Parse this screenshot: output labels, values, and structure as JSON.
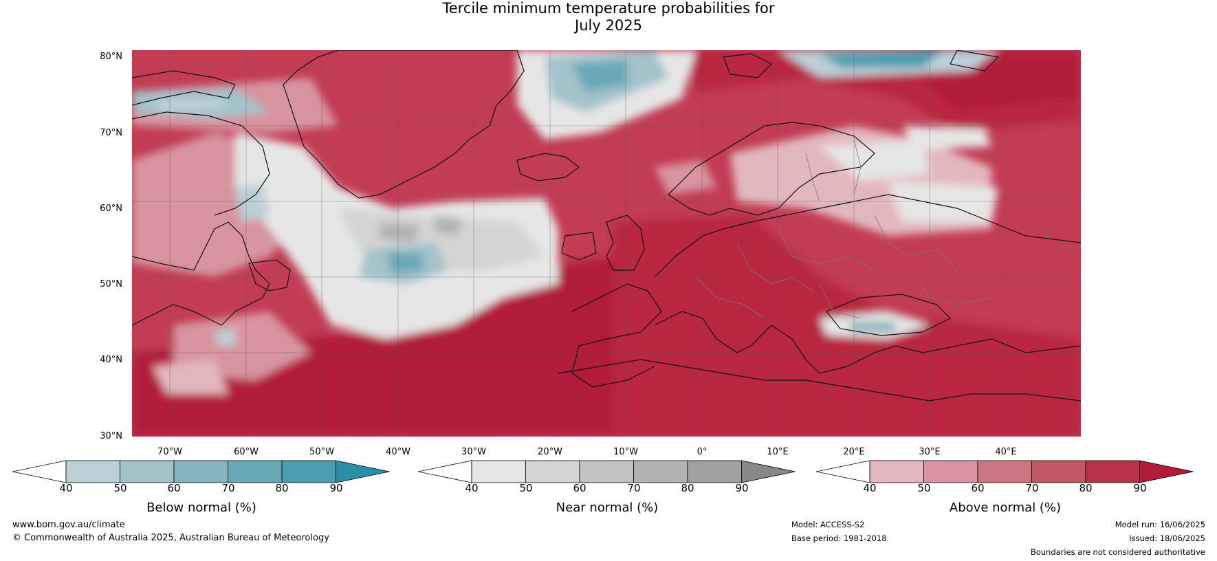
{
  "title": [
    "Tercile minimum temperature probabilities for",
    "July 2025"
  ],
  "lat_labels": [
    "80°N",
    "70°N",
    "60°N",
    "50°N",
    "40°N",
    "30°N"
  ],
  "lon_labels": [
    "70°W",
    "60°W",
    "50°W",
    "40°W",
    "30°W",
    "20°W",
    "10°W",
    "0°",
    "10°E",
    "20°E",
    "30°E",
    "40°E"
  ],
  "colorbars": [
    {
      "id": "below",
      "title": "Below normal (%)",
      "ticks": [
        "40",
        "50",
        "60",
        "70",
        "80",
        "90"
      ],
      "colors": [
        "#ffffff",
        "#bccfd7",
        "#a3c2ca",
        "#87b4be",
        "#69a8b6",
        "#4a9eb0",
        "#2a8fa4"
      ]
    },
    {
      "id": "near",
      "title": "Near normal (%)",
      "ticks": [
        "40",
        "50",
        "60",
        "70",
        "80",
        "90"
      ],
      "colors": [
        "#ffffff",
        "#e6e6e6",
        "#d4d4d4",
        "#c3c3c3",
        "#b2b2b2",
        "#a1a1a1",
        "#878787"
      ]
    },
    {
      "id": "above",
      "title": "Above normal (%)",
      "ticks": [
        "40",
        "50",
        "60",
        "70",
        "80",
        "90"
      ],
      "colors": [
        "#ffffff",
        "#e3b7be",
        "#d8949f",
        "#cd7682",
        "#c35667",
        "#b8324a",
        "#b21c3a"
      ]
    }
  ],
  "footer": {
    "site": "www.bom.gov.au/climate",
    "copyright": "© Commonwealth of Australia 2025, Australian Bureau of Meteorology",
    "model": "Model: ACCESS-S2",
    "base_period": "Base period: 1981-2018",
    "model_run": "Model run: 16/06/2025",
    "issued": "Issued: 18/06/2025",
    "disclaimer": "Boundaries are not considered authoritative"
  }
}
